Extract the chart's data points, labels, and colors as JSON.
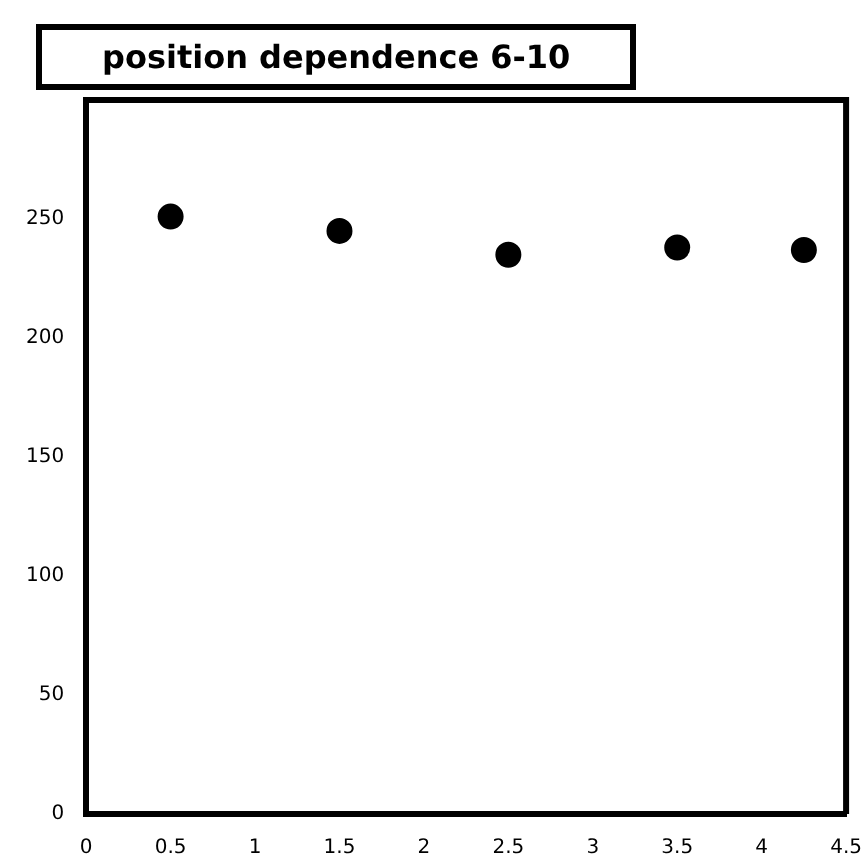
{
  "chart_data": {
    "type": "scatter",
    "title": "position dependence 6-10",
    "x": [
      0.5,
      1.5,
      2.5,
      3.5,
      4.25
    ],
    "values": [
      251,
      245,
      235,
      238,
      237
    ],
    "color": "#000000",
    "marker": "circle",
    "xlim": [
      0,
      4.5
    ],
    "xticks": [
      0,
      0.5,
      1,
      1.5,
      2,
      2.5,
      3,
      3.5,
      4,
      4.5
    ],
    "ylim": [
      0,
      300
    ],
    "yticks": [
      0,
      50,
      100,
      150,
      200,
      250
    ],
    "grid": false,
    "legend": false
  }
}
